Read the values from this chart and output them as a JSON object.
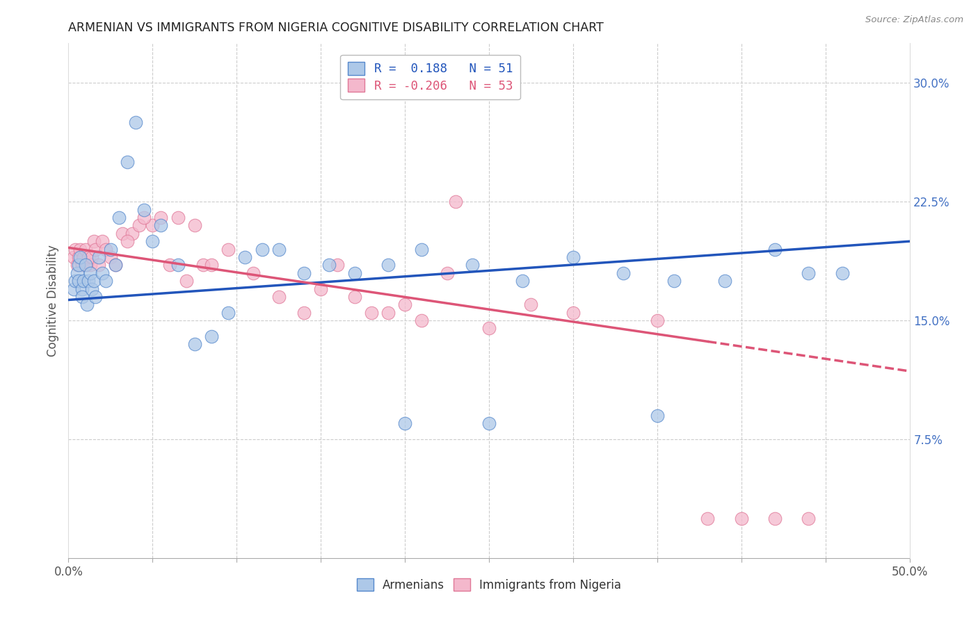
{
  "title": "ARMENIAN VS IMMIGRANTS FROM NIGERIA COGNITIVE DISABILITY CORRELATION CHART",
  "source": "Source: ZipAtlas.com",
  "ylabel": "Cognitive Disability",
  "xlim": [
    0.0,
    0.5
  ],
  "ylim": [
    0.0,
    0.325
  ],
  "R_armenian": 0.188,
  "N_armenian": 51,
  "R_nigeria": -0.206,
  "N_nigeria": 53,
  "color_armenian_face": "#adc8e8",
  "color_armenian_edge": "#5588cc",
  "color_nigeria_face": "#f4b8cc",
  "color_nigeria_edge": "#e07898",
  "line_color_armenian": "#2255bb",
  "line_color_nigeria": "#dd5577",
  "ytick_vals": [
    0.075,
    0.15,
    0.225,
    0.3
  ],
  "ytick_labels": [
    "7.5%",
    "15.0%",
    "22.5%",
    "30.0%"
  ],
  "xtick_positions": [
    0.0,
    0.05,
    0.1,
    0.15,
    0.2,
    0.25,
    0.3,
    0.35,
    0.4,
    0.45,
    0.5
  ],
  "xtick_labels": [
    "0.0%",
    "",
    "",
    "",
    "",
    "",
    "",
    "",
    "",
    "",
    "50.0%"
  ],
  "grid_color": "#cccccc",
  "background_color": "#ffffff",
  "legend_R_text_armenian": "R =  0.188   N = 51",
  "legend_R_text_nigeria": "R = -0.206   N = 53",
  "legend_bottom_1": "Armenians",
  "legend_bottom_2": "Immigrants from Nigeria",
  "arm_x": [
    0.003,
    0.004,
    0.005,
    0.006,
    0.006,
    0.007,
    0.008,
    0.008,
    0.009,
    0.01,
    0.011,
    0.012,
    0.013,
    0.014,
    0.015,
    0.016,
    0.018,
    0.02,
    0.022,
    0.025,
    0.028,
    0.03,
    0.035,
    0.04,
    0.045,
    0.05,
    0.055,
    0.065,
    0.075,
    0.085,
    0.095,
    0.105,
    0.115,
    0.125,
    0.14,
    0.155,
    0.17,
    0.19,
    0.21,
    0.24,
    0.27,
    0.3,
    0.33,
    0.36,
    0.39,
    0.42,
    0.44,
    0.46,
    0.2,
    0.25,
    0.35
  ],
  "arm_y": [
    0.17,
    0.175,
    0.18,
    0.185,
    0.175,
    0.19,
    0.17,
    0.165,
    0.175,
    0.185,
    0.16,
    0.175,
    0.18,
    0.17,
    0.175,
    0.165,
    0.19,
    0.18,
    0.175,
    0.195,
    0.185,
    0.215,
    0.25,
    0.275,
    0.22,
    0.2,
    0.21,
    0.185,
    0.135,
    0.14,
    0.155,
    0.19,
    0.195,
    0.195,
    0.18,
    0.185,
    0.18,
    0.185,
    0.195,
    0.185,
    0.175,
    0.19,
    0.18,
    0.175,
    0.175,
    0.195,
    0.18,
    0.18,
    0.085,
    0.085,
    0.09
  ],
  "nig_x": [
    0.003,
    0.004,
    0.005,
    0.006,
    0.007,
    0.008,
    0.009,
    0.01,
    0.011,
    0.012,
    0.013,
    0.014,
    0.015,
    0.016,
    0.018,
    0.02,
    0.022,
    0.025,
    0.028,
    0.032,
    0.038,
    0.042,
    0.05,
    0.06,
    0.07,
    0.08,
    0.095,
    0.11,
    0.125,
    0.14,
    0.16,
    0.18,
    0.2,
    0.225,
    0.25,
    0.275,
    0.3,
    0.35,
    0.035,
    0.045,
    0.055,
    0.065,
    0.075,
    0.085,
    0.15,
    0.17,
    0.19,
    0.21,
    0.23,
    0.38,
    0.4,
    0.42,
    0.44
  ],
  "nig_y": [
    0.19,
    0.195,
    0.185,
    0.19,
    0.195,
    0.185,
    0.19,
    0.195,
    0.185,
    0.19,
    0.185,
    0.19,
    0.2,
    0.195,
    0.185,
    0.2,
    0.195,
    0.19,
    0.185,
    0.205,
    0.205,
    0.21,
    0.21,
    0.185,
    0.175,
    0.185,
    0.195,
    0.18,
    0.165,
    0.155,
    0.185,
    0.155,
    0.16,
    0.18,
    0.145,
    0.16,
    0.155,
    0.15,
    0.2,
    0.215,
    0.215,
    0.215,
    0.21,
    0.185,
    0.17,
    0.165,
    0.155,
    0.15,
    0.225,
    0.025,
    0.025,
    0.025,
    0.025
  ]
}
